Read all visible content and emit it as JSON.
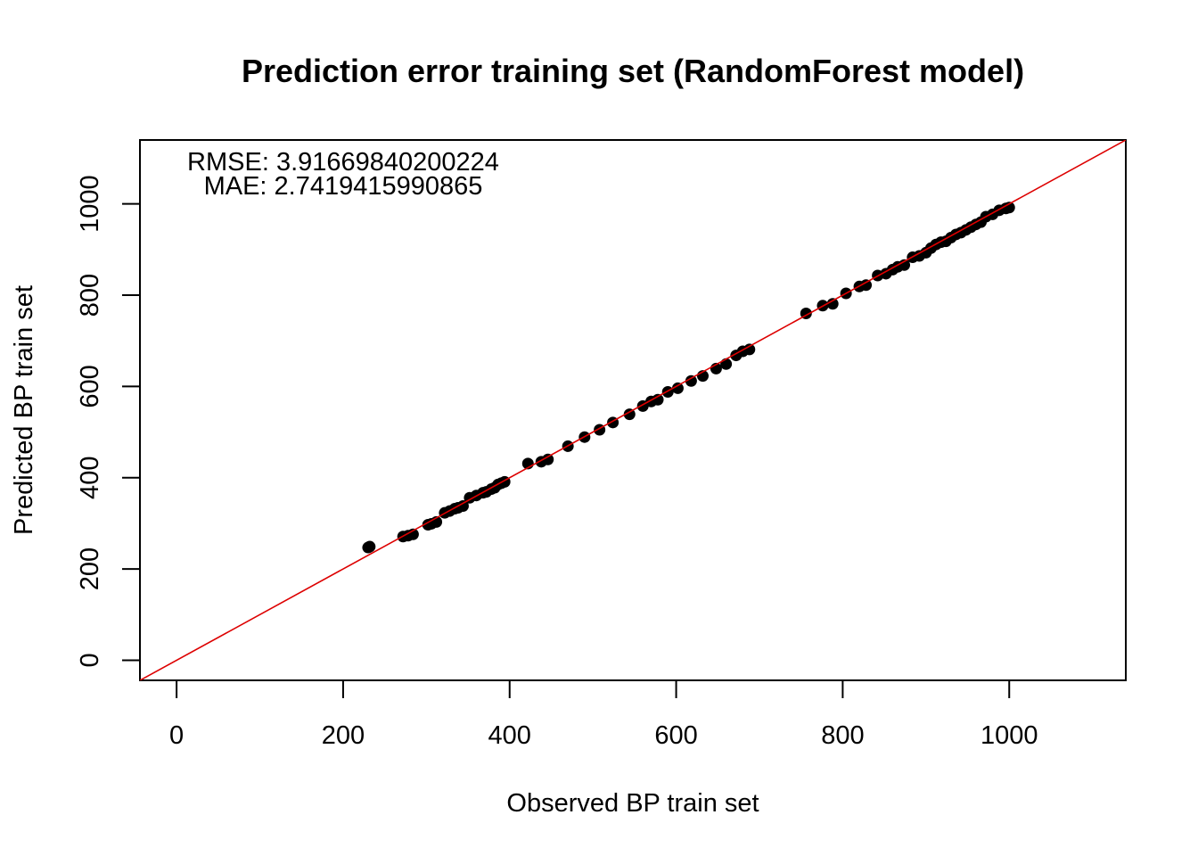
{
  "chart_data": {
    "type": "scatter",
    "title": "Prediction error training set (RandomForest model)",
    "xlabel": "Observed BP train set",
    "ylabel": "Predicted BP train set",
    "xlim": [
      -44,
      1140
    ],
    "ylim": [
      -44,
      1140
    ],
    "xticks": [
      0,
      200,
      400,
      600,
      800,
      1000
    ],
    "yticks": [
      0,
      200,
      400,
      600,
      800,
      1000
    ],
    "xtick_labels": [
      "0",
      "200",
      "400",
      "600",
      "800",
      "1000"
    ],
    "ytick_labels": [
      "0",
      "200",
      "400",
      "600",
      "800",
      "1000"
    ],
    "grid": false,
    "annotations": {
      "rmse_label": "RMSE:  3.91669840200224",
      "mae_label": "MAE:  2.7419415990865"
    },
    "reference_line": {
      "name": "identity line y = x",
      "slope": 1,
      "intercept": 0,
      "color": "#dd0000"
    },
    "point_color": "#000000",
    "series": [
      {
        "name": "training set",
        "points": [
          [
            230,
            247
          ],
          [
            232,
            249
          ],
          [
            272,
            271
          ],
          [
            278,
            273
          ],
          [
            284,
            276
          ],
          [
            302,
            297
          ],
          [
            306,
            299
          ],
          [
            312,
            303
          ],
          [
            322,
            323
          ],
          [
            328,
            327
          ],
          [
            334,
            332
          ],
          [
            338,
            334
          ],
          [
            344,
            338
          ],
          [
            352,
            356
          ],
          [
            360,
            361
          ],
          [
            368,
            367
          ],
          [
            372,
            369
          ],
          [
            378,
            375
          ],
          [
            382,
            378
          ],
          [
            386,
            385
          ],
          [
            390,
            388
          ],
          [
            394,
            391
          ],
          [
            422,
            431
          ],
          [
            438,
            435
          ],
          [
            446,
            440
          ],
          [
            470,
            469
          ],
          [
            490,
            489
          ],
          [
            508,
            505
          ],
          [
            524,
            521
          ],
          [
            544,
            539
          ],
          [
            560,
            557
          ],
          [
            570,
            567
          ],
          [
            578,
            571
          ],
          [
            590,
            588
          ],
          [
            602,
            596
          ],
          [
            618,
            612
          ],
          [
            632,
            623
          ],
          [
            648,
            639
          ],
          [
            660,
            649
          ],
          [
            672,
            668
          ],
          [
            680,
            677
          ],
          [
            688,
            681
          ],
          [
            756,
            760
          ],
          [
            776,
            777
          ],
          [
            788,
            781
          ],
          [
            804,
            804
          ],
          [
            820,
            819
          ],
          [
            828,
            822
          ],
          [
            842,
            843
          ],
          [
            852,
            847
          ],
          [
            860,
            856
          ],
          [
            866,
            862
          ],
          [
            874,
            866
          ],
          [
            884,
            883
          ],
          [
            892,
            886
          ],
          [
            900,
            893
          ],
          [
            906,
            903
          ],
          [
            912,
            911
          ],
          [
            918,
            916
          ],
          [
            924,
            918
          ],
          [
            930,
            926
          ],
          [
            936,
            933
          ],
          [
            942,
            937
          ],
          [
            948,
            943
          ],
          [
            954,
            949
          ],
          [
            960,
            955
          ],
          [
            966,
            960
          ],
          [
            972,
            972
          ],
          [
            980,
            977
          ],
          [
            988,
            986
          ],
          [
            996,
            990
          ],
          [
            1000,
            992
          ]
        ]
      }
    ]
  }
}
